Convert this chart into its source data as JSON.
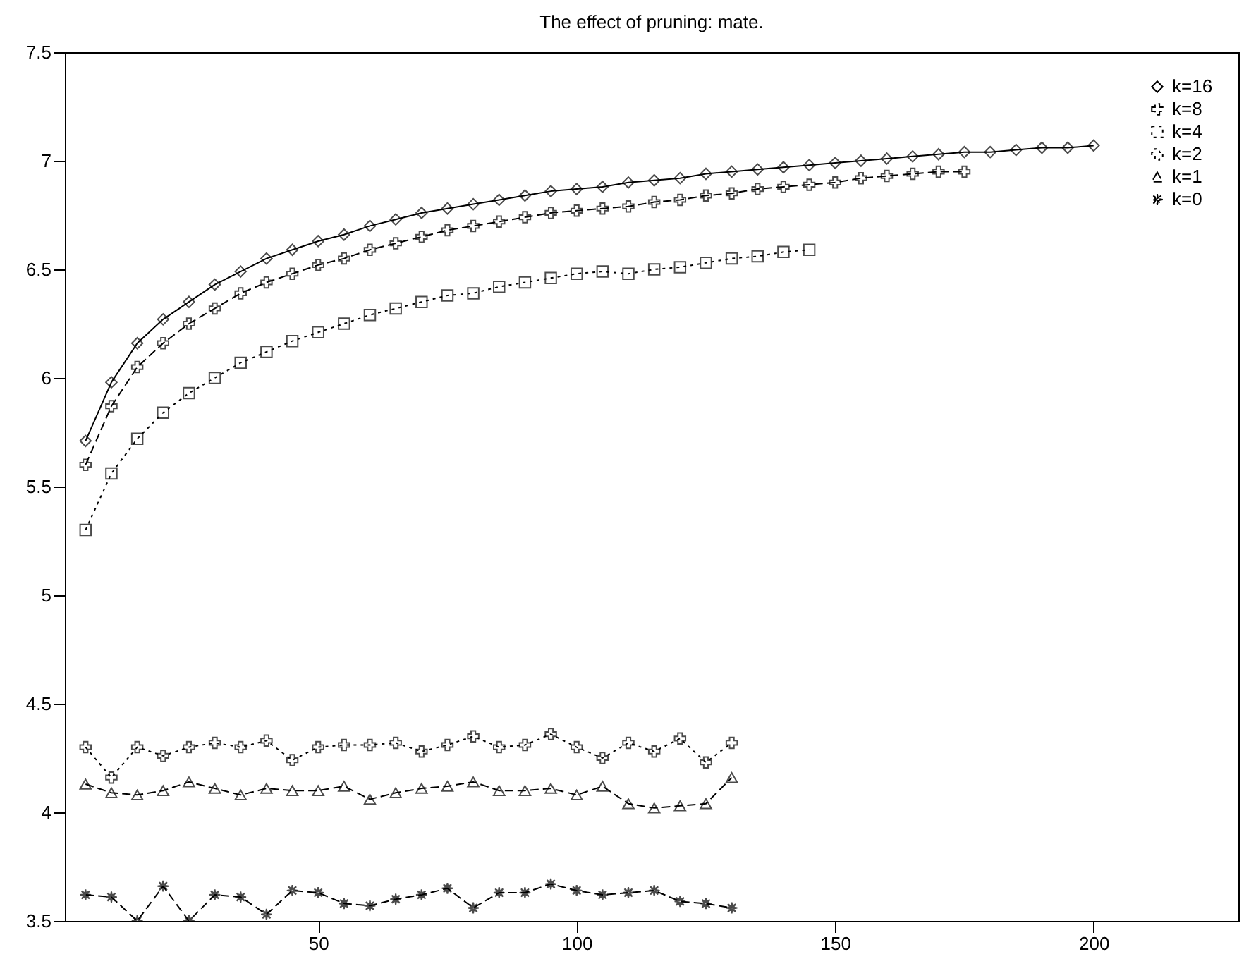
{
  "chart_data": {
    "type": "line",
    "title": "The effect of pruning: mate.",
    "xlim": [
      1,
      228
    ],
    "xticks": [
      50,
      100,
      150,
      200
    ],
    "ylim": [
      3.5,
      7.5
    ],
    "yticks": [
      3.5,
      4,
      4.5,
      5,
      5.5,
      6,
      6.5,
      7,
      7.5
    ],
    "grid": false,
    "legend": "top right",
    "series": [
      {
        "name": "k=16",
        "color": "#000000",
        "marker": "diamond",
        "line_style": "solid",
        "x": [
          5,
          10,
          15,
          20,
          25,
          30,
          35,
          40,
          45,
          50,
          55,
          60,
          65,
          70,
          75,
          80,
          85,
          90,
          95,
          100,
          105,
          110,
          115,
          120,
          125,
          130,
          135,
          140,
          145,
          150,
          155,
          160,
          165,
          170,
          175,
          180,
          185,
          190,
          195,
          200
        ],
        "values": [
          5.71,
          5.98,
          6.16,
          6.27,
          6.35,
          6.43,
          6.49,
          6.55,
          6.59,
          6.63,
          6.66,
          6.7,
          6.73,
          6.76,
          6.78,
          6.8,
          6.82,
          6.84,
          6.86,
          6.87,
          6.88,
          6.9,
          6.91,
          6.92,
          6.94,
          6.95,
          6.96,
          6.97,
          6.98,
          6.99,
          7.0,
          7.01,
          7.02,
          7.03,
          7.04,
          7.04,
          7.05,
          7.06,
          7.06,
          7.07
        ]
      },
      {
        "name": "k=8",
        "color": "#000000",
        "marker": "cross",
        "line_style": "dashed",
        "x": [
          5,
          10,
          15,
          20,
          25,
          30,
          35,
          40,
          45,
          50,
          55,
          60,
          65,
          70,
          75,
          80,
          85,
          90,
          95,
          100,
          105,
          110,
          115,
          120,
          125,
          130,
          135,
          140,
          145,
          150,
          155,
          160,
          165,
          170,
          175
        ],
        "values": [
          5.6,
          5.87,
          6.05,
          6.16,
          6.25,
          6.32,
          6.39,
          6.44,
          6.48,
          6.52,
          6.55,
          6.59,
          6.62,
          6.65,
          6.68,
          6.7,
          6.72,
          6.74,
          6.76,
          6.77,
          6.78,
          6.79,
          6.81,
          6.82,
          6.84,
          6.85,
          6.87,
          6.88,
          6.89,
          6.9,
          6.92,
          6.93,
          6.94,
          6.95,
          6.95
        ]
      },
      {
        "name": "k=4",
        "color": "#000000",
        "marker": "square",
        "line_style": "dotted",
        "x": [
          5,
          10,
          15,
          20,
          25,
          30,
          35,
          40,
          45,
          50,
          55,
          60,
          65,
          70,
          75,
          80,
          85,
          90,
          95,
          100,
          105,
          110,
          115,
          120,
          125,
          130,
          135,
          140,
          145
        ],
        "values": [
          5.3,
          5.56,
          5.72,
          5.84,
          5.93,
          6.0,
          6.07,
          6.12,
          6.17,
          6.21,
          6.25,
          6.29,
          6.32,
          6.35,
          6.38,
          6.39,
          6.42,
          6.44,
          6.46,
          6.48,
          6.49,
          6.48,
          6.5,
          6.51,
          6.53,
          6.55,
          6.56,
          6.58,
          6.59
        ]
      },
      {
        "name": "k=2",
        "color": "#000000",
        "marker": "cross",
        "line_style": "dotted",
        "x": [
          5,
          10,
          15,
          20,
          25,
          30,
          35,
          40,
          45,
          50,
          55,
          60,
          65,
          70,
          75,
          80,
          85,
          90,
          95,
          100,
          105,
          110,
          115,
          120,
          125,
          130
        ],
        "values": [
          4.3,
          4.16,
          4.3,
          4.26,
          4.3,
          4.32,
          4.3,
          4.33,
          4.24,
          4.3,
          4.31,
          4.31,
          4.32,
          4.28,
          4.31,
          4.35,
          4.3,
          4.31,
          4.36,
          4.3,
          4.25,
          4.32,
          4.28,
          4.34,
          4.23,
          4.32
        ]
      },
      {
        "name": "k=1",
        "color": "#000000",
        "marker": "triangle",
        "line_style": "dashed",
        "x": [
          5,
          10,
          15,
          20,
          25,
          30,
          35,
          40,
          45,
          50,
          55,
          60,
          65,
          70,
          75,
          80,
          85,
          90,
          95,
          100,
          105,
          110,
          115,
          120,
          125,
          130
        ],
        "values": [
          4.13,
          4.09,
          4.08,
          4.1,
          4.14,
          4.11,
          4.08,
          4.11,
          4.1,
          4.1,
          4.12,
          4.06,
          4.09,
          4.11,
          4.12,
          4.14,
          4.1,
          4.1,
          4.11,
          4.08,
          4.12,
          4.04,
          4.02,
          4.03,
          4.04,
          4.16
        ]
      },
      {
        "name": "k=0",
        "color": "#000000",
        "marker": "star",
        "line_style": "dashed",
        "x": [
          5,
          10,
          15,
          20,
          25,
          30,
          35,
          40,
          45,
          50,
          55,
          60,
          65,
          70,
          75,
          80,
          85,
          90,
          95,
          100,
          105,
          110,
          115,
          120,
          125,
          130
        ],
        "values": [
          3.62,
          3.61,
          3.5,
          3.66,
          3.5,
          3.62,
          3.61,
          3.53,
          3.64,
          3.63,
          3.58,
          3.57,
          3.6,
          3.62,
          3.65,
          3.56,
          3.63,
          3.63,
          3.67,
          3.64,
          3.62,
          3.63,
          3.64,
          3.59,
          3.58,
          3.56
        ]
      }
    ]
  }
}
